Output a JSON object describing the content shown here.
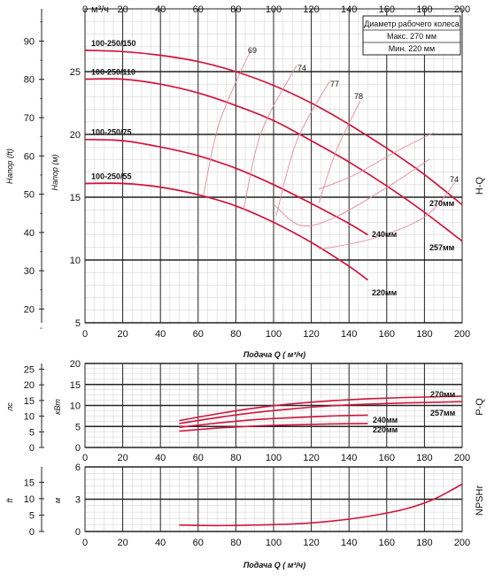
{
  "chart_data": [
    {
      "type": "line",
      "panel": "H-Q",
      "side_label": "H-Q",
      "xlabel_top": "м³/ч",
      "xlabel": "Подача Q ( м³/ч)",
      "ylabel_left": "Напор (ft)",
      "ylabel_right": "Напор (м)",
      "xlim": [
        0,
        200
      ],
      "ylim": [
        5,
        30
      ],
      "x_ticks": [
        0,
        20,
        40,
        60,
        80,
        100,
        120,
        140,
        160,
        180,
        200
      ],
      "y_ticks": [
        5,
        10,
        15,
        20,
        25
      ],
      "ft_ticks": [
        20,
        30,
        40,
        50,
        60,
        70,
        80,
        90
      ],
      "grid": true,
      "legend_box": {
        "title": "Диаметр рабочего колеса",
        "lines": [
          "Макс. 270 мм",
          "Мин. 220 мм"
        ],
        "position": "top-right"
      },
      "series": [
        {
          "name": "100-250/150",
          "x": [
            0,
            20,
            40,
            60,
            80,
            100,
            120,
            140,
            160,
            180,
            200
          ],
          "y": [
            26.7,
            26.6,
            26.3,
            25.8,
            25.0,
            23.9,
            22.5,
            20.8,
            18.9,
            16.8,
            14.4
          ]
        },
        {
          "name": "100-250/110",
          "x": [
            0,
            20,
            40,
            60,
            80,
            100,
            120,
            140,
            160,
            180,
            200
          ],
          "y": [
            24.4,
            24.4,
            24.0,
            23.3,
            22.3,
            21.1,
            19.5,
            17.8,
            15.9,
            13.8,
            11.5
          ]
        },
        {
          "name": "100-250/75",
          "x": [
            0,
            20,
            40,
            60,
            80,
            100,
            120,
            140,
            150
          ],
          "y": [
            19.6,
            19.5,
            19.0,
            18.3,
            17.3,
            16.0,
            14.5,
            12.9,
            12.0
          ]
        },
        {
          "name": "100-250/55",
          "x": [
            0,
            20,
            40,
            60,
            80,
            100,
            120,
            140,
            150
          ],
          "y": [
            16.1,
            16.1,
            15.8,
            15.2,
            14.3,
            13.0,
            11.4,
            9.5,
            8.4
          ]
        }
      ],
      "curve_labels": [
        "270мм",
        "257мм",
        "240мм",
        "220мм"
      ],
      "efficiency_labels": [
        "69",
        "74",
        "77",
        "78",
        "74"
      ]
    },
    {
      "type": "line",
      "panel": "P-Q",
      "side_label": "P-Q",
      "ylabel_left": "лс",
      "ylabel_right": "кВт",
      "xlim": [
        0,
        200
      ],
      "ylim": [
        0,
        20
      ],
      "x_ticks": [
        0,
        20,
        40,
        60,
        80,
        100,
        120,
        140,
        160,
        180,
        200
      ],
      "y_ticks": [
        0,
        5,
        10,
        15,
        20
      ],
      "hp_ticks": [
        0,
        5,
        10,
        15,
        20,
        25
      ],
      "grid": true,
      "series": [
        {
          "name": "270мм",
          "x": [
            50,
            70,
            90,
            110,
            130,
            150,
            170,
            190,
            200
          ],
          "y": [
            6.4,
            8.0,
            9.4,
            10.4,
            11.1,
            11.6,
            11.9,
            12.1,
            12.2
          ]
        },
        {
          "name": "257мм",
          "x": [
            50,
            70,
            90,
            110,
            130,
            150,
            170,
            190,
            200
          ],
          "y": [
            5.7,
            7.1,
            8.3,
            9.2,
            9.9,
            10.3,
            10.6,
            10.8,
            10.9
          ]
        },
        {
          "name": "240мм",
          "x": [
            50,
            70,
            90,
            110,
            130,
            150
          ],
          "y": [
            4.8,
            5.8,
            6.6,
            7.1,
            7.5,
            7.7
          ]
        },
        {
          "name": "220мм",
          "x": [
            50,
            70,
            90,
            110,
            130,
            150
          ],
          "y": [
            3.9,
            4.6,
            5.1,
            5.4,
            5.6,
            5.7
          ]
        }
      ]
    },
    {
      "type": "line",
      "panel": "NPSHr",
      "side_label": "NPSHr",
      "ylabel_left": "ft",
      "ylabel_right": "м",
      "xlabel": "Подача Q ( м³/ч)",
      "xlim": [
        0,
        200
      ],
      "ylim": [
        0,
        6
      ],
      "x_ticks": [
        0,
        20,
        40,
        60,
        80,
        100,
        120,
        140,
        160,
        180,
        200
      ],
      "y_ticks": [
        0,
        3,
        6
      ],
      "ft_ticks": [
        0,
        5,
        10,
        15
      ],
      "grid": true,
      "series": [
        {
          "name": "",
          "x": [
            50,
            70,
            90,
            110,
            130,
            150,
            170,
            185,
            200
          ],
          "y": [
            0.6,
            0.55,
            0.6,
            0.7,
            0.95,
            1.4,
            2.1,
            3.0,
            4.4
          ]
        }
      ]
    }
  ]
}
